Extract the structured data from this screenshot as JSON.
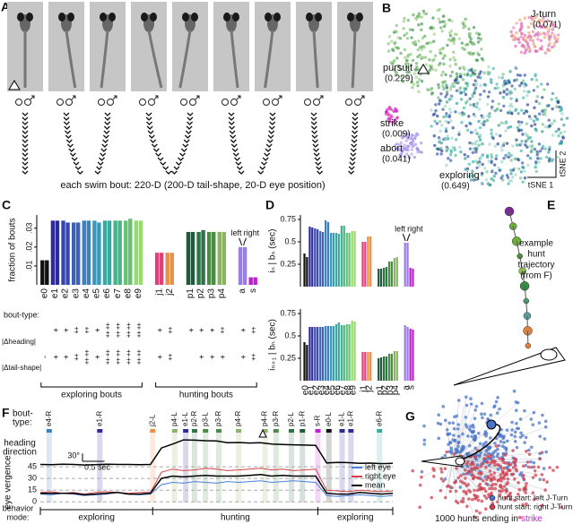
{
  "panels": {
    "A": {
      "letter": "A",
      "caption": "each swim bout: 220-D (200-D tail-shape, 20-D eye position)"
    },
    "B": {
      "letter": "B",
      "clusters": [
        {
          "name": "pursuit",
          "fraction": "(0.229)"
        },
        {
          "name": "J-turn",
          "fraction": "(0.071)"
        },
        {
          "name": "strike",
          "fraction": "(0.009)"
        },
        {
          "name": "abort",
          "fraction": "(0.041)"
        },
        {
          "name": "exploring",
          "fraction": "(0.649)"
        }
      ],
      "axis1": "tSNE 1",
      "axis2": "tSNE 2"
    },
    "C": {
      "letter": "C"
    },
    "D": {
      "letter": "D"
    },
    "E": {
      "letter": "E",
      "lines": [
        "example",
        "hunt",
        "trajectory",
        "(from F)"
      ]
    },
    "F": {
      "letter": "F"
    },
    "G": {
      "letter": "G",
      "caption": "1000 hunts ending in",
      "highlight": "strike",
      "legend": [
        "hunt start: left J-Turn",
        "hunt start: right J-Turn"
      ]
    }
  },
  "chart_data": [
    {
      "type": "bar",
      "ylabel": "fraction of bouts",
      "categories": [
        "e0",
        "e1",
        "e2",
        "e3",
        "e4",
        "e5",
        "e6",
        "e7",
        "e8",
        "e9",
        "j1",
        "j2",
        "p1",
        "p2",
        "p3",
        "p4",
        "a",
        "s"
      ],
      "colors": [
        "#111111",
        "#2c2a9c",
        "#3646b0",
        "#3b64b8",
        "#3c80c0",
        "#3a98b8",
        "#3aa8a0",
        "#48b288",
        "#66c272",
        "#96dc6c",
        "#e0407a",
        "#e8904a",
        "#1f5a3a",
        "#2e7444",
        "#4a8c44",
        "#8ab464",
        "#9a7ee8",
        "#c020d0"
      ],
      "series": [
        {
          "name": "left",
          "values": [
            0.013,
            0.034,
            0.034,
            0.033,
            0.034,
            0.034,
            0.034,
            0.034,
            0.034,
            0.034,
            0.017,
            0.017,
            0.028,
            0.028,
            0.028,
            0.028,
            0.02,
            0.004
          ]
        },
        {
          "name": "right",
          "values": [
            0.013,
            0.034,
            0.033,
            0.033,
            0.034,
            0.033,
            0.034,
            0.034,
            0.035,
            0.034,
            0.017,
            0.017,
            0.028,
            0.029,
            0.028,
            0.028,
            0.02,
            0.004
          ]
        }
      ],
      "ylim": [
        0,
        0.037
      ],
      "yticks": [
        {
          "value": 0.01,
          "label": ".01"
        },
        {
          "value": 0.02,
          "label": ".02"
        },
        {
          "value": 0.03,
          "label": ".03"
        }
      ],
      "row_label": "bout-type:",
      "heading_label": "|Δheading|",
      "tail_label": "|Δtail-shape|",
      "heading": [
        null,
        "+",
        "+",
        "‡",
        "‡",
        "+",
        "‡‡",
        "‡‡",
        "‡‡",
        "‡‡",
        "+",
        "‡",
        "+",
        "+",
        "+",
        "‡",
        "+",
        "‡"
      ],
      "tail": [
        "-",
        "+",
        "+",
        "‡",
        "‡‡",
        "+",
        "‡‡",
        "‡‡",
        "‡‡",
        "‡‡",
        "+",
        "‡",
        null,
        "+",
        "+",
        "+",
        "+",
        "‡"
      ],
      "groups": [
        "exploring bouts",
        "hunting bouts"
      ]
    },
    {
      "type": "bar-pair",
      "categories": [
        "e0",
        "e1",
        "e2",
        "e3",
        "e4",
        "e5",
        "e6",
        "e7",
        "e8",
        "e9",
        "j1",
        "j2",
        "p1",
        "p2",
        "p3",
        "p4",
        "a",
        "s"
      ],
      "panels": [
        {
          "ylabel": "iₙ | bₙ (sec)",
          "ylim": [
            0,
            0.8
          ],
          "yticks": [
            0.25,
            0.5,
            0.75
          ],
          "series": [
            {
              "name": "left",
              "values": [
                0.37,
                0.67,
                0.65,
                0.62,
                0.74,
                0.6,
                0.6,
                0.68,
                0.6,
                0.62,
                0.5,
                0.56,
                0.2,
                0.21,
                0.28,
                0.32,
                0.49,
                0.21
              ]
            },
            {
              "name": "right",
              "values": [
                0.33,
                0.66,
                0.64,
                0.61,
                0.72,
                0.6,
                0.59,
                0.68,
                0.6,
                0.62,
                0.5,
                0.56,
                0.2,
                0.22,
                0.28,
                0.33,
                0.49,
                0.2
              ]
            }
          ]
        },
        {
          "ylabel": "iₙ₊₁ | bₙ (sec)",
          "ylim": [
            0,
            0.8
          ],
          "yticks": [
            0.25,
            0.5,
            0.75
          ],
          "series": [
            {
              "values": [
                0.43,
                0.6,
                0.6,
                0.6,
                0.61,
                0.61,
                0.63,
                0.62,
                0.63,
                0.67,
                0.32,
                0.32,
                0.25,
                0.27,
                0.3,
                0.33,
                0.62,
                0.58
              ]
            },
            {
              "values": [
                0.4,
                0.6,
                0.6,
                0.6,
                0.61,
                0.61,
                0.65,
                0.62,
                0.63,
                0.66,
                0.32,
                0.32,
                0.26,
                0.27,
                0.3,
                0.33,
                0.6,
                0.57
              ]
            }
          ]
        }
      ]
    },
    {
      "type": "trace",
      "xlim": [
        0,
        8
      ],
      "x": [
        0,
        0.25,
        0.5,
        0.75,
        1,
        1.25,
        1.5,
        1.75,
        2,
        2.25,
        2.5,
        2.75,
        3,
        3.25,
        3.5,
        3.75,
        4,
        4.25,
        4.5,
        4.75,
        5,
        5.25,
        5.5,
        5.75,
        6,
        6.25,
        6.5,
        6.75,
        7,
        7.25,
        7.5,
        7.75,
        8
      ],
      "bout_label": [
        "bout-",
        "type:"
      ],
      "bouts": {
        "labels": [
          "e4-R",
          "e1-R",
          "j2-L",
          "p4-L",
          "e1-L",
          "p2-R",
          "p3-L",
          "p3-R",
          "p4-R",
          "p4-R",
          "p3-R",
          "p2-L",
          "p1-R",
          "s-R",
          "e0-L",
          "e1-L",
          "e1-R",
          "e6-R"
        ],
        "x": [
          0.2,
          1.35,
          2.55,
          3.05,
          3.3,
          3.5,
          3.75,
          4.05,
          4.5,
          5.1,
          5.35,
          5.7,
          5.95,
          6.3,
          6.55,
          6.85,
          7.05,
          7.7
        ]
      },
      "heading": {
        "label": [
          "heading",
          "direction"
        ],
        "ylim": [
          -10,
          110
        ],
        "values": [
          2,
          1,
          3,
          2,
          0,
          1,
          3,
          2,
          2,
          1,
          2,
          65,
          80,
          96,
          95,
          93,
          92,
          85,
          86,
          84,
          85,
          80,
          78,
          77,
          76,
          75,
          8,
          10,
          9,
          6,
          7,
          5,
          6
        ],
        "scale": {
          "value": 30,
          "label": "30°"
        }
      },
      "time_scale": {
        "value": 0.5,
        "label": "0.5 sec"
      },
      "vergence": {
        "ylabel": "eye vergence",
        "ylim": [
          -2,
          52
        ],
        "yticks": [
          0,
          15,
          30,
          45
        ],
        "series": [
          {
            "name": "left eye",
            "color": "#4a7fd8",
            "values": [
              10,
              9,
              11,
              10,
              8,
              9,
              10,
              12,
              10,
              9,
              10,
              22,
              25,
              24,
              26,
              25,
              24,
              26,
              25,
              26,
              27,
              25,
              26,
              27,
              26,
              25,
              8,
              7,
              8,
              9,
              8,
              7,
              8
            ]
          },
          {
            "name": "right eye",
            "color": "#d8404a",
            "values": [
              12,
              13,
              11,
              12,
              10,
              12,
              13,
              12,
              11,
              12,
              12,
              38,
              42,
              40,
              41,
              43,
              42,
              40,
              41,
              42,
              43,
              41,
              42,
              40,
              41,
              42,
              15,
              14,
              13,
              15,
              14,
              13,
              14
            ]
          },
          {
            "name": "mean",
            "color": "#000000",
            "values": [
              11,
              11,
              11,
              11,
              9,
              10,
              11,
              12,
              10,
              10,
              11,
              30,
              33,
              32,
              33,
              34,
              33,
              33,
              33,
              34,
              35,
              33,
              34,
              33,
              33,
              33,
              11,
              10,
              10,
              12,
              11,
              10,
              11
            ]
          }
        ]
      },
      "mode": {
        "label": [
          "behavior",
          "mode:"
        ],
        "labels": [
          "exploring",
          "hunting",
          "exploring"
        ],
        "edges": [
          0,
          2.55,
          6.3,
          8
        ]
      }
    }
  ]
}
